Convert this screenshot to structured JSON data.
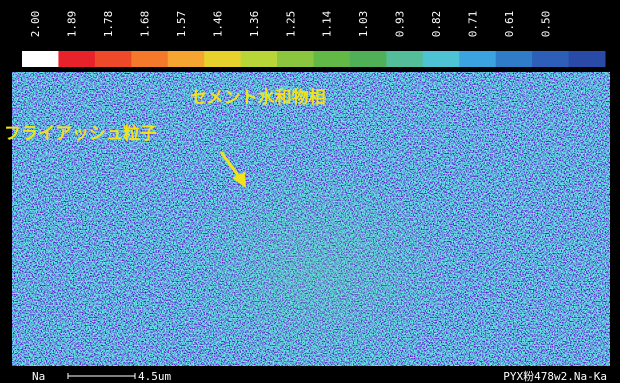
{
  "scale": {
    "labels": [
      "2.00",
      "1.89",
      "1.78",
      "1.68",
      "1.57",
      "1.46",
      "1.36",
      "1.25",
      "1.14",
      "1.03",
      "0.93",
      "0.82",
      "0.71",
      "0.61",
      "0.50"
    ],
    "colors": [
      "#ffffff",
      "#e8222a",
      "#ee4a2a",
      "#f5792a",
      "#f7a531",
      "#e7d12c",
      "#b8d637",
      "#8cc63f",
      "#62b946",
      "#4fb057",
      "#54be9a",
      "#4ec3d3",
      "#3ba4e0",
      "#2f7cc8",
      "#2d5fb8",
      "#2a4aa8"
    ]
  },
  "annotations": [
    "セメント水和物相",
    "フライアッシュ粒子"
  ],
  "footer": {
    "element": "Na",
    "scale_bar": "4.5um",
    "sample": "PYX粉478w2.Na-Ka"
  }
}
